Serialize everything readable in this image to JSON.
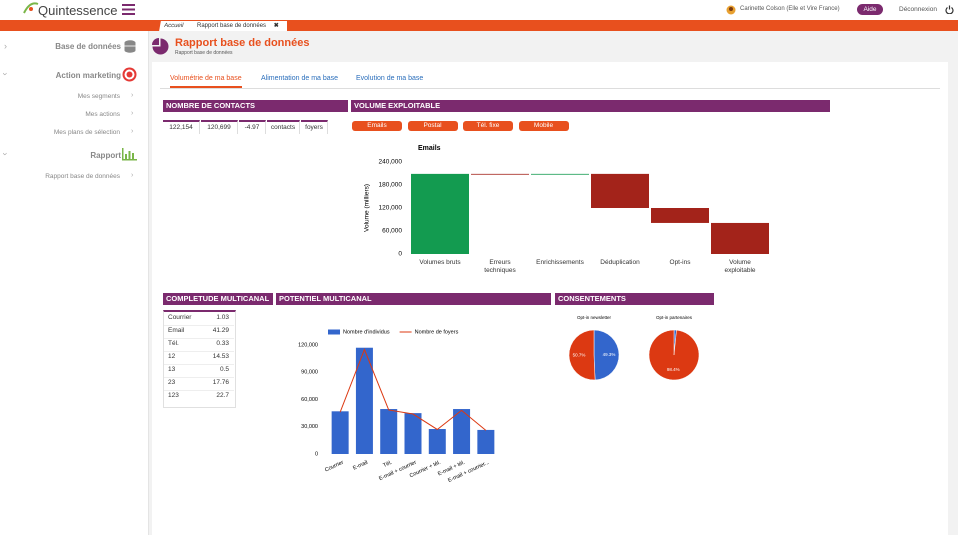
{
  "header": {
    "logo": "Quintessence",
    "user": "Carinette Colson (Elle et Vire France)",
    "help": "Aide",
    "logout": "Déconnexion"
  },
  "tabs": [
    "Accueil",
    "Rapport base de données"
  ],
  "sidebar": [
    "Base de données",
    "Action marketing",
    "Mes segments",
    "Mes actions",
    "Mes plans de sélection",
    "Rapport",
    "Rapport base de données"
  ],
  "page": {
    "title": "Rapport base de données",
    "subtitle": "Rapport base de données"
  },
  "subtabs": [
    "Volumétrie de ma base",
    "Alimentation de ma base",
    "Evolution de ma base"
  ],
  "contacts": {
    "heading": "NOMBRE DE CONTACTS",
    "row": [
      "122,154",
      "120,699",
      "-4.97",
      "contacts",
      "foyers"
    ]
  },
  "volume": {
    "heading": "VOLUME EXPLOITABLE",
    "buttons": [
      "Emails",
      "Postal",
      "Tél. fixe",
      "Mobile"
    ]
  },
  "completude": {
    "heading": "COMPLETUDE MULTICANAL",
    "rows": [
      [
        "Courrier",
        1.03
      ],
      [
        "Email",
        41.29
      ],
      [
        "Tél.",
        0.33
      ],
      [
        "12",
        14.53
      ],
      [
        "13",
        0.5
      ],
      [
        "23",
        17.76
      ],
      [
        "123",
        22.7
      ]
    ]
  },
  "potentiel": {
    "heading": "POTENTIEL MULTICANAL"
  },
  "consentements": {
    "heading": "CONSENTEMENTS"
  },
  "chart_data": [
    {
      "type": "waterfall",
      "title": "Emails",
      "y_label": "Volume (milliers)",
      "categories": [
        "Volumes bruts",
        "Erreurs techniques",
        "Enrichissements",
        "Déduplication",
        "Opt-ins",
        "Volume exploitable"
      ],
      "values": [
        209000,
        -1000,
        1000,
        -89000,
        -39000,
        81000
      ],
      "measure": [
        "absolute",
        "relative",
        "relative",
        "relative",
        "relative",
        "total"
      ],
      "colors": [
        "#139b50",
        "#a3231a",
        "#139b50",
        "#a3231a",
        "#a3231a",
        "#a3231a"
      ],
      "ylim": [
        0,
        240000
      ],
      "yticks": [
        0,
        {
          "value": 60000,
          "label": "60,000"
        },
        {
          "value": 120000,
          "label": "120,000"
        },
        {
          "value": 180000,
          "label": "180,000"
        },
        {
          "value": 240000,
          "label": "240,000"
        }
      ]
    },
    {
      "type": "bar",
      "categories": [
        "Courrier",
        "E-mail",
        "Tél.",
        "E-mail + courrier",
        "Courrier + tél.",
        "E-mail + tél.",
        "E-mail + courrier..."
      ],
      "series": [
        {
          "name": "Nombre d'individus",
          "type": "bar",
          "color": "#3366cc",
          "values": [
            47000,
            117000,
            49500,
            45000,
            27500,
            49500,
            26500
          ]
        },
        {
          "name": "Nombre de foyers",
          "type": "line",
          "color": "#dc3912",
          "values": [
            46000,
            115000,
            48500,
            44000,
            27000,
            48000,
            26000
          ]
        }
      ],
      "ylim": [
        0,
        120000
      ],
      "yticks": [
        0,
        {
          "value": 30000,
          "label": "30,000"
        },
        {
          "value": 60000,
          "label": "60,000"
        },
        {
          "value": 90000,
          "label": "90,000"
        },
        {
          "value": 120000,
          "label": "120,000"
        }
      ],
      "legend": "top"
    },
    {
      "type": "pie",
      "title": "Opt-in newsletter",
      "values": [
        49.3,
        50.7
      ],
      "value_labels": [
        "49.3%",
        "50.7%"
      ],
      "colors": [
        "#3366cc",
        "#dc3912"
      ]
    },
    {
      "type": "pie",
      "title": "Opt-in partenaires",
      "values": [
        1.6,
        98.4
      ],
      "value_labels": [
        null,
        "98.4%"
      ],
      "colors": [
        "#3366cc",
        "#dc3912"
      ]
    }
  ]
}
